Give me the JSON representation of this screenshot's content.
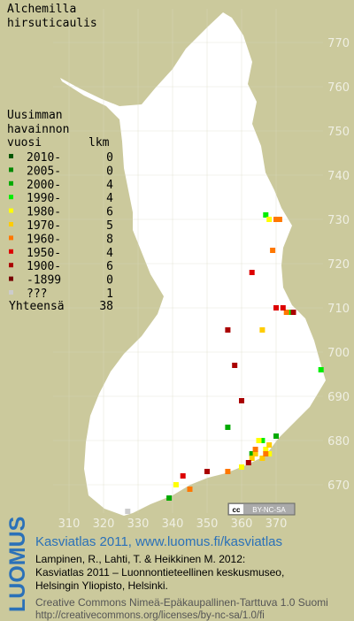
{
  "chart_data": {
    "type": "map",
    "title": [
      "Alchemilla",
      "hirsuticaulis"
    ],
    "legend_title": [
      "Uusimman",
      "havainnon",
      "vuosi"
    ],
    "count_label": "lkm",
    "series": [
      {
        "name": "2010-",
        "count": 0,
        "color": "#005500",
        "x": [],
        "y": []
      },
      {
        "name": "2005-",
        "count": 0,
        "color": "#008800",
        "x": [],
        "y": []
      },
      {
        "name": "2000-",
        "count": 4,
        "color": "#00aa00",
        "x": [
          356,
          370,
          363,
          339
        ],
        "y": [
          683,
          681,
          677,
          667
        ]
      },
      {
        "name": "1990-",
        "count": 4,
        "color": "#00ee00",
        "x": [
          367,
          374,
          383,
          366
        ],
        "y": [
          731,
          709,
          696,
          680
        ]
      },
      {
        "name": "1980-",
        "count": 6,
        "color": "#ffff00",
        "x": [
          368,
          365,
          367,
          360,
          341,
          368
        ],
        "y": [
          730,
          680,
          678,
          674,
          670,
          677
        ]
      },
      {
        "name": "1970-",
        "count": 5,
        "color": "#ffcc00",
        "x": [
          366,
          364,
          368,
          366,
          363
        ],
        "y": [
          705,
          677,
          679,
          676,
          676
        ]
      },
      {
        "name": "1960-",
        "count": 8,
        "color": "#ff7700",
        "x": [
          370,
          371,
          369,
          373,
          356,
          345,
          364,
          367
        ],
        "y": [
          730,
          730,
          723,
          709,
          673,
          669,
          678,
          677
        ]
      },
      {
        "name": "1950-",
        "count": 4,
        "color": "#dd0000",
        "x": [
          370,
          372,
          363,
          343
        ],
        "y": [
          710,
          710,
          718,
          672
        ]
      },
      {
        "name": "1900-",
        "count": 6,
        "color": "#aa0000",
        "x": [
          375,
          356,
          358,
          360,
          350,
          362
        ],
        "y": [
          709,
          705,
          697,
          689,
          673,
          675
        ]
      },
      {
        "name": "-1899",
        "count": 0,
        "color": "#770000",
        "x": [],
        "y": []
      },
      {
        "name": "???",
        "count": 1,
        "color": "#cccccc",
        "x": [
          327
        ],
        "y": [
          664
        ]
      }
    ],
    "total_label": "Yhteensä",
    "total": 38,
    "xticks": [
      310,
      320,
      330,
      340,
      350,
      360,
      370
    ],
    "yticks": [
      670,
      680,
      690,
      700,
      710,
      720,
      730,
      740,
      750,
      760,
      770
    ]
  },
  "badge": [
    "cc",
    "BY-NC-SA"
  ],
  "footer": {
    "brand": "LUOMUS",
    "heading": "Kasviatlas 2011, www.luomus.fi/kasviatlas",
    "citation": [
      "Lampinen, R., Lahti, T. & Heikkinen M. 2012:",
      "Kasviatlas 2011 – Luonnontieteellinen keskusmuseo,",
      "Helsingin Yliopisto, Helsinki."
    ],
    "license": [
      "Creative Commons Nimeä-Epäkaupallinen-Tarttuva 1.0 Suomi",
      "http://creativecommons.org/licenses/by-nc-sa/1.0/fi"
    ]
  }
}
